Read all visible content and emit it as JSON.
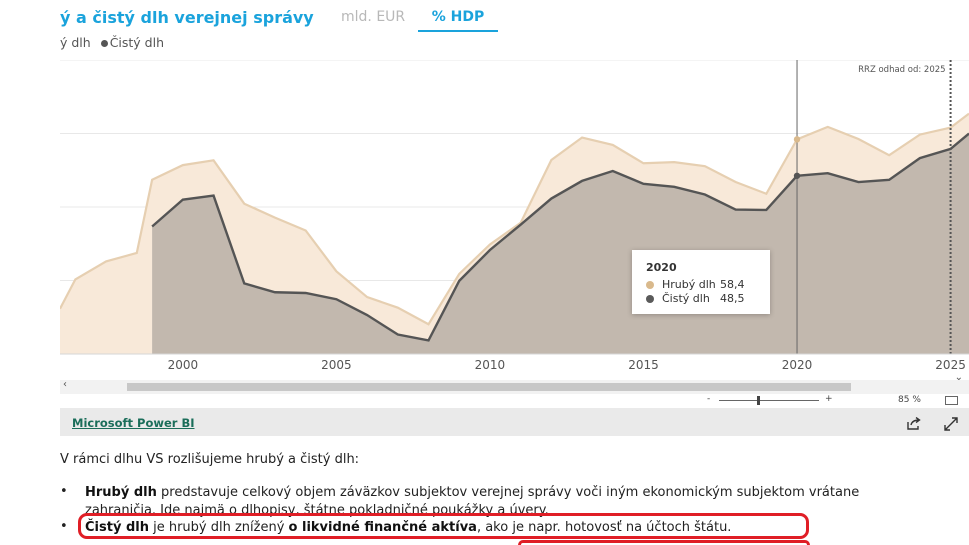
{
  "report": {
    "title": "ý a čistý dlh verejnej správy",
    "tabs": [
      {
        "label": "mld. EUR",
        "active": false
      },
      {
        "label": "% HDP",
        "active": true
      }
    ],
    "legend": {
      "item1": "ý dlh",
      "item2": "Čistý dlh"
    },
    "annotation": "RRZ odhad od: 2025",
    "tooltip": {
      "year": "2020",
      "rows": [
        {
          "label": "Hrubý dlh",
          "value": "58,4",
          "color": "#d9b98c"
        },
        {
          "label": "Čistý dlh",
          "value": "48,5",
          "color": "#5a5a5a"
        }
      ]
    }
  },
  "chart_data": {
    "type": "area",
    "x_ticks": [
      "2000",
      "2005",
      "2010",
      "2015",
      "2020",
      "2025"
    ],
    "xlim": [
      1996,
      2025.6
    ],
    "ylim": [
      0,
      80
    ],
    "grid": true,
    "estimate_line_year": 2025,
    "cursor_year": 2020,
    "colors": {
      "gross_fill": "#f8e9d9",
      "gross_line": "#e6cfb1",
      "gross_marker": "#d9b98c",
      "net_fill": "#c2b8ae",
      "net_line": "#555555",
      "grid": "#e8e8e8"
    },
    "series": [
      {
        "name": "Hrubý dlh",
        "x": [
          1996,
          1996.5,
          1997.5,
          1998.5,
          1999,
          2000,
          2001,
          2002,
          2003,
          2004,
          2005,
          2006,
          2007,
          2008,
          2009,
          2010,
          2011,
          2012,
          2013,
          2014,
          2015,
          2016,
          2017,
          2018,
          2019,
          2020,
          2021,
          2022,
          2023,
          2024,
          2025,
          2025.6
        ],
        "values": [
          12.3,
          20.3,
          25.2,
          27.5,
          47.4,
          51.4,
          52.7,
          40.9,
          37.1,
          33.6,
          22.5,
          15.5,
          12.6,
          8.1,
          21.8,
          29.8,
          35.7,
          52.8,
          58.9,
          56.9,
          51.9,
          52.2,
          51.1,
          46.8,
          43.6,
          58.4,
          61.8,
          58.5,
          54.1,
          59.7,
          61.6,
          65.4
        ]
      },
      {
        "name": "Čistý dlh",
        "x": [
          1999,
          2000,
          2001,
          2002,
          2003,
          2004,
          2005,
          2006,
          2007,
          2008,
          2009,
          2010,
          2011,
          2012,
          2013,
          2014,
          2015,
          2016,
          2017,
          2018,
          2019,
          2020,
          2021,
          2022,
          2023,
          2024,
          2025,
          2025.6
        ],
        "values": [
          34.7,
          42.0,
          43.1,
          19.2,
          16.8,
          16.6,
          14.9,
          10.6,
          5.3,
          3.7,
          19.9,
          28.3,
          35.2,
          42.3,
          47.1,
          49.8,
          46.3,
          45.5,
          43.4,
          39.3,
          39.2,
          48.5,
          49.2,
          46.8,
          47.4,
          53.3,
          55.8,
          60.0
        ]
      }
    ]
  },
  "scrollbar": {
    "left_arrow": "‹",
    "right_arrow": "⌄"
  },
  "zoom": {
    "minus": "-",
    "plus": "+",
    "percent": "85 %"
  },
  "footer": {
    "link": "Microsoft Power BI"
  },
  "article": {
    "intro": "V rámci dlhu VS rozlišujeme hrubý a čistý dlh:",
    "bullet_symbol": "•",
    "bullet1": {
      "bold": "Hrubý dlh",
      "line1": " predstavuje celkový objem záväzkov subjektov verejnej správy voči iným ekonomickým subjektom vrátane",
      "line2": "zahraničia. Ide najmä o dlhopisy, štátne pokladničné poukážky a úvery."
    },
    "bullet2": {
      "bold": "Čistý dlh",
      "mid": " je hrubý dlh znížený ",
      "bold2": "o likvidné finančné aktíva",
      "tail": ", ako je napr. hotovosť na účtoch štátu."
    }
  }
}
